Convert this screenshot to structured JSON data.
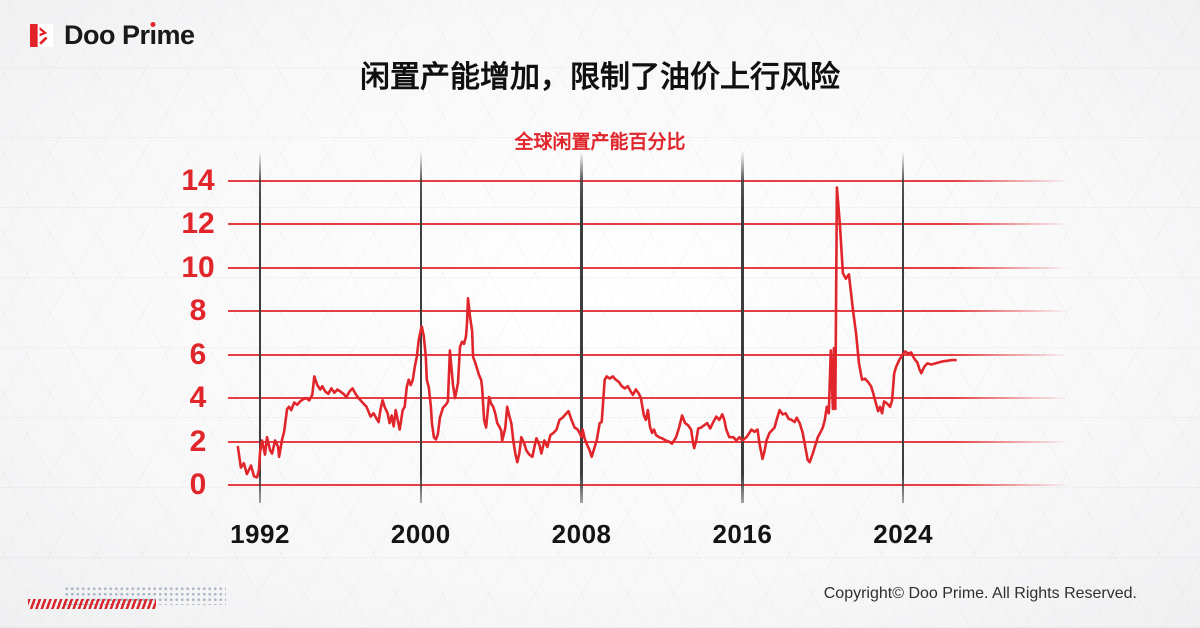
{
  "logo": {
    "prefix": "Doo Pr",
    "dotless_i": "ı",
    "suffix": "me"
  },
  "header": {
    "title": "闲置产能增加，限制了油价上行风险"
  },
  "chart_data": {
    "type": "line",
    "title": "全球闲置产能百分比",
    "xlabel": "",
    "ylabel": "",
    "ylim": [
      0,
      14
    ],
    "yticks": [
      0,
      2,
      4,
      6,
      8,
      10,
      12,
      14
    ],
    "xticks": [
      1992,
      2000,
      2008,
      2016,
      2024
    ],
    "x_range": [
      1990.9,
      2026.6
    ],
    "grid": "horizontal red lines at each ytick; vertical dark lines at each xtick",
    "legend": "none",
    "line_color": "#e0252b",
    "series": [
      {
        "name": "全球闲置产能百分比",
        "points": [
          [
            1990.9,
            1.75
          ],
          [
            1991.05,
            0.8
          ],
          [
            1991.2,
            1.0
          ],
          [
            1991.35,
            0.5
          ],
          [
            1991.55,
            0.9
          ],
          [
            1991.7,
            0.4
          ],
          [
            1991.85,
            0.35
          ],
          [
            1991.95,
            0.7
          ],
          [
            1992.0,
            1.5
          ],
          [
            1992.1,
            2.05
          ],
          [
            1992.25,
            1.4
          ],
          [
            1992.35,
            2.2
          ],
          [
            1992.5,
            1.6
          ],
          [
            1992.6,
            1.45
          ],
          [
            1992.75,
            2.05
          ],
          [
            1992.9,
            1.75
          ],
          [
            1992.95,
            1.3
          ],
          [
            1993.1,
            2.1
          ],
          [
            1993.2,
            2.45
          ],
          [
            1993.35,
            3.5
          ],
          [
            1993.45,
            3.6
          ],
          [
            1993.55,
            3.45
          ],
          [
            1993.7,
            3.8
          ],
          [
            1993.85,
            3.7
          ],
          [
            1994.0,
            3.85
          ],
          [
            1994.15,
            3.95
          ],
          [
            1994.3,
            4.0
          ],
          [
            1994.45,
            3.9
          ],
          [
            1994.6,
            4.15
          ],
          [
            1994.7,
            5.0
          ],
          [
            1994.85,
            4.6
          ],
          [
            1995.0,
            4.4
          ],
          [
            1995.1,
            4.55
          ],
          [
            1995.25,
            4.3
          ],
          [
            1995.4,
            4.2
          ],
          [
            1995.55,
            4.45
          ],
          [
            1995.7,
            4.25
          ],
          [
            1995.85,
            4.4
          ],
          [
            1996.0,
            4.3
          ],
          [
            1996.15,
            4.2
          ],
          [
            1996.3,
            4.05
          ],
          [
            1996.45,
            4.3
          ],
          [
            1996.6,
            4.45
          ],
          [
            1996.75,
            4.2
          ],
          [
            1996.9,
            4.0
          ],
          [
            1997.1,
            3.8
          ],
          [
            1997.3,
            3.6
          ],
          [
            1997.5,
            3.15
          ],
          [
            1997.65,
            3.3
          ],
          [
            1997.8,
            3.05
          ],
          [
            1997.9,
            2.9
          ],
          [
            1998.0,
            3.5
          ],
          [
            1998.1,
            3.9
          ],
          [
            1998.2,
            3.6
          ],
          [
            1998.35,
            3.3
          ],
          [
            1998.45,
            2.85
          ],
          [
            1998.55,
            3.2
          ],
          [
            1998.65,
            2.7
          ],
          [
            1998.75,
            3.45
          ],
          [
            1998.85,
            3.0
          ],
          [
            1998.95,
            2.55
          ],
          [
            1999.1,
            3.45
          ],
          [
            1999.2,
            3.6
          ],
          [
            1999.3,
            4.5
          ],
          [
            1999.4,
            4.85
          ],
          [
            1999.5,
            4.6
          ],
          [
            1999.6,
            4.85
          ],
          [
            1999.7,
            5.45
          ],
          [
            1999.8,
            5.9
          ],
          [
            1999.9,
            6.7
          ],
          [
            2000.0,
            7.15
          ],
          [
            2000.05,
            7.3
          ],
          [
            2000.15,
            6.85
          ],
          [
            2000.25,
            5.9
          ],
          [
            2000.3,
            4.85
          ],
          [
            2000.4,
            4.5
          ],
          [
            2000.5,
            3.6
          ],
          [
            2000.55,
            2.85
          ],
          [
            2000.65,
            2.2
          ],
          [
            2000.75,
            2.1
          ],
          [
            2000.85,
            2.35
          ],
          [
            2000.95,
            3.1
          ],
          [
            2001.1,
            3.55
          ],
          [
            2001.25,
            3.7
          ],
          [
            2001.35,
            3.85
          ],
          [
            2001.45,
            6.2
          ],
          [
            2001.6,
            4.6
          ],
          [
            2001.7,
            4.0
          ],
          [
            2001.85,
            4.7
          ],
          [
            2001.95,
            6.35
          ],
          [
            2002.05,
            6.6
          ],
          [
            2002.15,
            6.5
          ],
          [
            2002.25,
            6.85
          ],
          [
            2002.3,
            7.45
          ],
          [
            2002.35,
            8.6
          ],
          [
            2002.45,
            7.75
          ],
          [
            2002.55,
            7.1
          ],
          [
            2002.6,
            5.9
          ],
          [
            2002.7,
            5.65
          ],
          [
            2002.8,
            5.35
          ],
          [
            2002.9,
            5.05
          ],
          [
            2003.0,
            4.85
          ],
          [
            2003.05,
            4.5
          ],
          [
            2003.15,
            3.0
          ],
          [
            2003.25,
            2.65
          ],
          [
            2003.4,
            4.05
          ],
          [
            2003.5,
            3.75
          ],
          [
            2003.6,
            3.6
          ],
          [
            2003.7,
            3.3
          ],
          [
            2003.8,
            2.85
          ],
          [
            2003.9,
            2.7
          ],
          [
            2004.0,
            2.5
          ],
          [
            2004.05,
            2.05
          ],
          [
            2004.2,
            2.6
          ],
          [
            2004.3,
            3.6
          ],
          [
            2004.4,
            3.2
          ],
          [
            2004.5,
            2.85
          ],
          [
            2004.6,
            2.05
          ],
          [
            2004.7,
            1.45
          ],
          [
            2004.8,
            1.05
          ],
          [
            2004.9,
            1.45
          ],
          [
            2005.0,
            2.2
          ],
          [
            2005.15,
            1.9
          ],
          [
            2005.25,
            1.6
          ],
          [
            2005.4,
            1.4
          ],
          [
            2005.55,
            1.3
          ],
          [
            2005.65,
            1.75
          ],
          [
            2005.75,
            2.15
          ],
          [
            2005.9,
            1.85
          ],
          [
            2006.0,
            1.45
          ],
          [
            2006.15,
            2.05
          ],
          [
            2006.3,
            1.75
          ],
          [
            2006.45,
            2.3
          ],
          [
            2006.6,
            2.4
          ],
          [
            2006.75,
            2.55
          ],
          [
            2006.9,
            3.0
          ],
          [
            2007.05,
            3.1
          ],
          [
            2007.2,
            3.25
          ],
          [
            2007.35,
            3.4
          ],
          [
            2007.5,
            3.0
          ],
          [
            2007.65,
            2.65
          ],
          [
            2007.8,
            2.55
          ],
          [
            2007.9,
            2.4
          ],
          [
            2008.0,
            2.2
          ],
          [
            2008.05,
            2.55
          ],
          [
            2008.15,
            2.15
          ],
          [
            2008.25,
            1.9
          ],
          [
            2008.4,
            1.6
          ],
          [
            2008.5,
            1.3
          ],
          [
            2008.65,
            1.75
          ],
          [
            2008.75,
            2.05
          ],
          [
            2008.9,
            2.85
          ],
          [
            2009.0,
            2.9
          ],
          [
            2009.15,
            4.85
          ],
          [
            2009.25,
            5.0
          ],
          [
            2009.4,
            4.9
          ],
          [
            2009.55,
            5.0
          ],
          [
            2009.7,
            4.85
          ],
          [
            2009.85,
            4.75
          ],
          [
            2010.0,
            4.55
          ],
          [
            2010.15,
            4.45
          ],
          [
            2010.3,
            4.55
          ],
          [
            2010.45,
            4.3
          ],
          [
            2010.55,
            4.15
          ],
          [
            2010.7,
            4.4
          ],
          [
            2010.85,
            4.2
          ],
          [
            2010.95,
            4.0
          ],
          [
            2011.1,
            3.2
          ],
          [
            2011.2,
            3.0
          ],
          [
            2011.3,
            3.45
          ],
          [
            2011.4,
            2.7
          ],
          [
            2011.5,
            2.4
          ],
          [
            2011.6,
            2.55
          ],
          [
            2011.7,
            2.3
          ],
          [
            2011.85,
            2.2
          ],
          [
            2012.0,
            2.15
          ],
          [
            2012.2,
            2.05
          ],
          [
            2012.35,
            2.0
          ],
          [
            2012.5,
            1.9
          ],
          [
            2012.7,
            2.2
          ],
          [
            2012.85,
            2.65
          ],
          [
            2013.0,
            3.2
          ],
          [
            2013.15,
            2.85
          ],
          [
            2013.3,
            2.75
          ],
          [
            2013.45,
            2.55
          ],
          [
            2013.55,
            1.9
          ],
          [
            2013.6,
            1.7
          ],
          [
            2013.7,
            2.05
          ],
          [
            2013.8,
            2.6
          ],
          [
            2013.95,
            2.65
          ],
          [
            2014.1,
            2.75
          ],
          [
            2014.25,
            2.85
          ],
          [
            2014.4,
            2.6
          ],
          [
            2014.55,
            2.9
          ],
          [
            2014.7,
            3.15
          ],
          [
            2014.85,
            3.0
          ],
          [
            2015.0,
            3.25
          ],
          [
            2015.1,
            3.0
          ],
          [
            2015.2,
            2.55
          ],
          [
            2015.35,
            2.2
          ],
          [
            2015.55,
            2.2
          ],
          [
            2015.7,
            2.05
          ],
          [
            2015.85,
            2.2
          ],
          [
            2016.0,
            2.05
          ],
          [
            2016.2,
            2.2
          ],
          [
            2016.35,
            2.4
          ],
          [
            2016.45,
            2.55
          ],
          [
            2016.6,
            2.45
          ],
          [
            2016.75,
            2.55
          ],
          [
            2016.85,
            1.9
          ],
          [
            2017.0,
            1.2
          ],
          [
            2017.1,
            1.55
          ],
          [
            2017.2,
            2.05
          ],
          [
            2017.35,
            2.4
          ],
          [
            2017.5,
            2.55
          ],
          [
            2017.6,
            2.65
          ],
          [
            2017.7,
            3.0
          ],
          [
            2017.85,
            3.45
          ],
          [
            2018.0,
            3.25
          ],
          [
            2018.15,
            3.3
          ],
          [
            2018.3,
            3.05
          ],
          [
            2018.45,
            3.0
          ],
          [
            2018.6,
            2.9
          ],
          [
            2018.7,
            3.1
          ],
          [
            2018.85,
            2.85
          ],
          [
            2019.0,
            2.4
          ],
          [
            2019.1,
            1.9
          ],
          [
            2019.25,
            1.15
          ],
          [
            2019.35,
            1.05
          ],
          [
            2019.5,
            1.45
          ],
          [
            2019.6,
            1.75
          ],
          [
            2019.75,
            2.2
          ],
          [
            2019.9,
            2.45
          ],
          [
            2020.0,
            2.65
          ],
          [
            2020.1,
            3.0
          ],
          [
            2020.2,
            3.6
          ],
          [
            2020.3,
            3.3
          ],
          [
            2020.4,
            6.2
          ],
          [
            2020.5,
            3.5
          ],
          [
            2020.55,
            6.3
          ],
          [
            2020.62,
            3.5
          ],
          [
            2020.7,
            13.7
          ],
          [
            2020.85,
            12.0
          ],
          [
            2021.0,
            9.75
          ],
          [
            2021.15,
            9.5
          ],
          [
            2021.3,
            9.7
          ],
          [
            2021.5,
            8.05
          ],
          [
            2021.65,
            7.0
          ],
          [
            2021.8,
            5.6
          ],
          [
            2021.95,
            4.85
          ],
          [
            2022.1,
            4.9
          ],
          [
            2022.25,
            4.75
          ],
          [
            2022.4,
            4.55
          ],
          [
            2022.5,
            4.25
          ],
          [
            2022.6,
            3.9
          ],
          [
            2022.75,
            3.4
          ],
          [
            2022.85,
            3.6
          ],
          [
            2022.95,
            3.3
          ],
          [
            2023.05,
            3.85
          ],
          [
            2023.2,
            3.75
          ],
          [
            2023.35,
            3.6
          ],
          [
            2023.45,
            3.9
          ],
          [
            2023.55,
            5.15
          ],
          [
            2023.65,
            5.45
          ],
          [
            2023.8,
            5.75
          ],
          [
            2023.9,
            5.9
          ],
          [
            2024.0,
            6.05
          ],
          [
            2024.1,
            6.15
          ],
          [
            2024.25,
            6.05
          ],
          [
            2024.4,
            6.1
          ],
          [
            2024.5,
            5.9
          ],
          [
            2024.6,
            5.75
          ],
          [
            2024.7,
            5.65
          ],
          [
            2024.8,
            5.35
          ],
          [
            2024.9,
            5.15
          ],
          [
            2025.05,
            5.45
          ],
          [
            2025.2,
            5.6
          ],
          [
            2025.4,
            5.55
          ],
          [
            2025.6,
            5.6
          ],
          [
            2025.8,
            5.65
          ],
          [
            2026.0,
            5.7
          ],
          [
            2026.2,
            5.72
          ],
          [
            2026.4,
            5.75
          ],
          [
            2026.6,
            5.75
          ]
        ]
      }
    ]
  },
  "footer": {
    "copyright": "Copyright© Doo Prime. All Rights Reserved."
  },
  "colors": {
    "accent_red": "#e0252b",
    "grid_red": "#e2242a",
    "axis_dark": "#3d3d3d",
    "title_black": "#101010",
    "background_gray": "#efeff0"
  }
}
